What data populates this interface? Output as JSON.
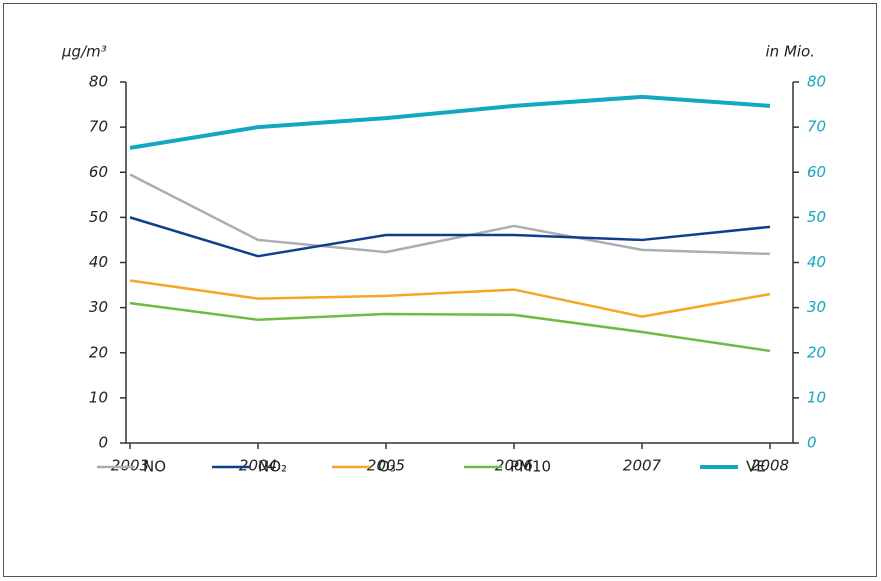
{
  "chart_data": {
    "type": "line",
    "ylabel": "µg/m³",
    "y2label": "in Mio.",
    "categories": [
      "2003",
      "2004",
      "2005",
      "2006",
      "2007",
      "2008"
    ],
    "ylim": [
      0,
      80
    ],
    "yticks": [
      0,
      10,
      20,
      30,
      40,
      50,
      60,
      70,
      80
    ],
    "y2lim": [
      0,
      80
    ],
    "y2ticks": [
      0,
      10,
      20,
      30,
      40,
      50,
      60,
      70,
      80
    ],
    "series": [
      {
        "name": "NO",
        "color": "#a9adb4",
        "values": [
          59.5,
          45.0,
          42.3,
          48.1,
          42.8,
          41.9
        ]
      },
      {
        "name": "NO₂",
        "color": "#0f3f8c",
        "values": [
          50.0,
          41.4,
          46.1,
          46.1,
          45.0,
          47.9
        ]
      },
      {
        "name": "O₃",
        "color": "#f6a623",
        "values": [
          36.0,
          32.0,
          32.6,
          34.0,
          28.0,
          33.0
        ]
      },
      {
        "name": "PM10",
        "color": "#6dbb45",
        "values": [
          31.0,
          27.3,
          28.6,
          28.4,
          24.6,
          20.4
        ]
      },
      {
        "name": "VE",
        "color": "#13a8c0",
        "axis": "y2",
        "values": [
          65.4,
          70.0,
          72.0,
          74.7,
          76.7,
          74.7
        ]
      }
    ]
  }
}
